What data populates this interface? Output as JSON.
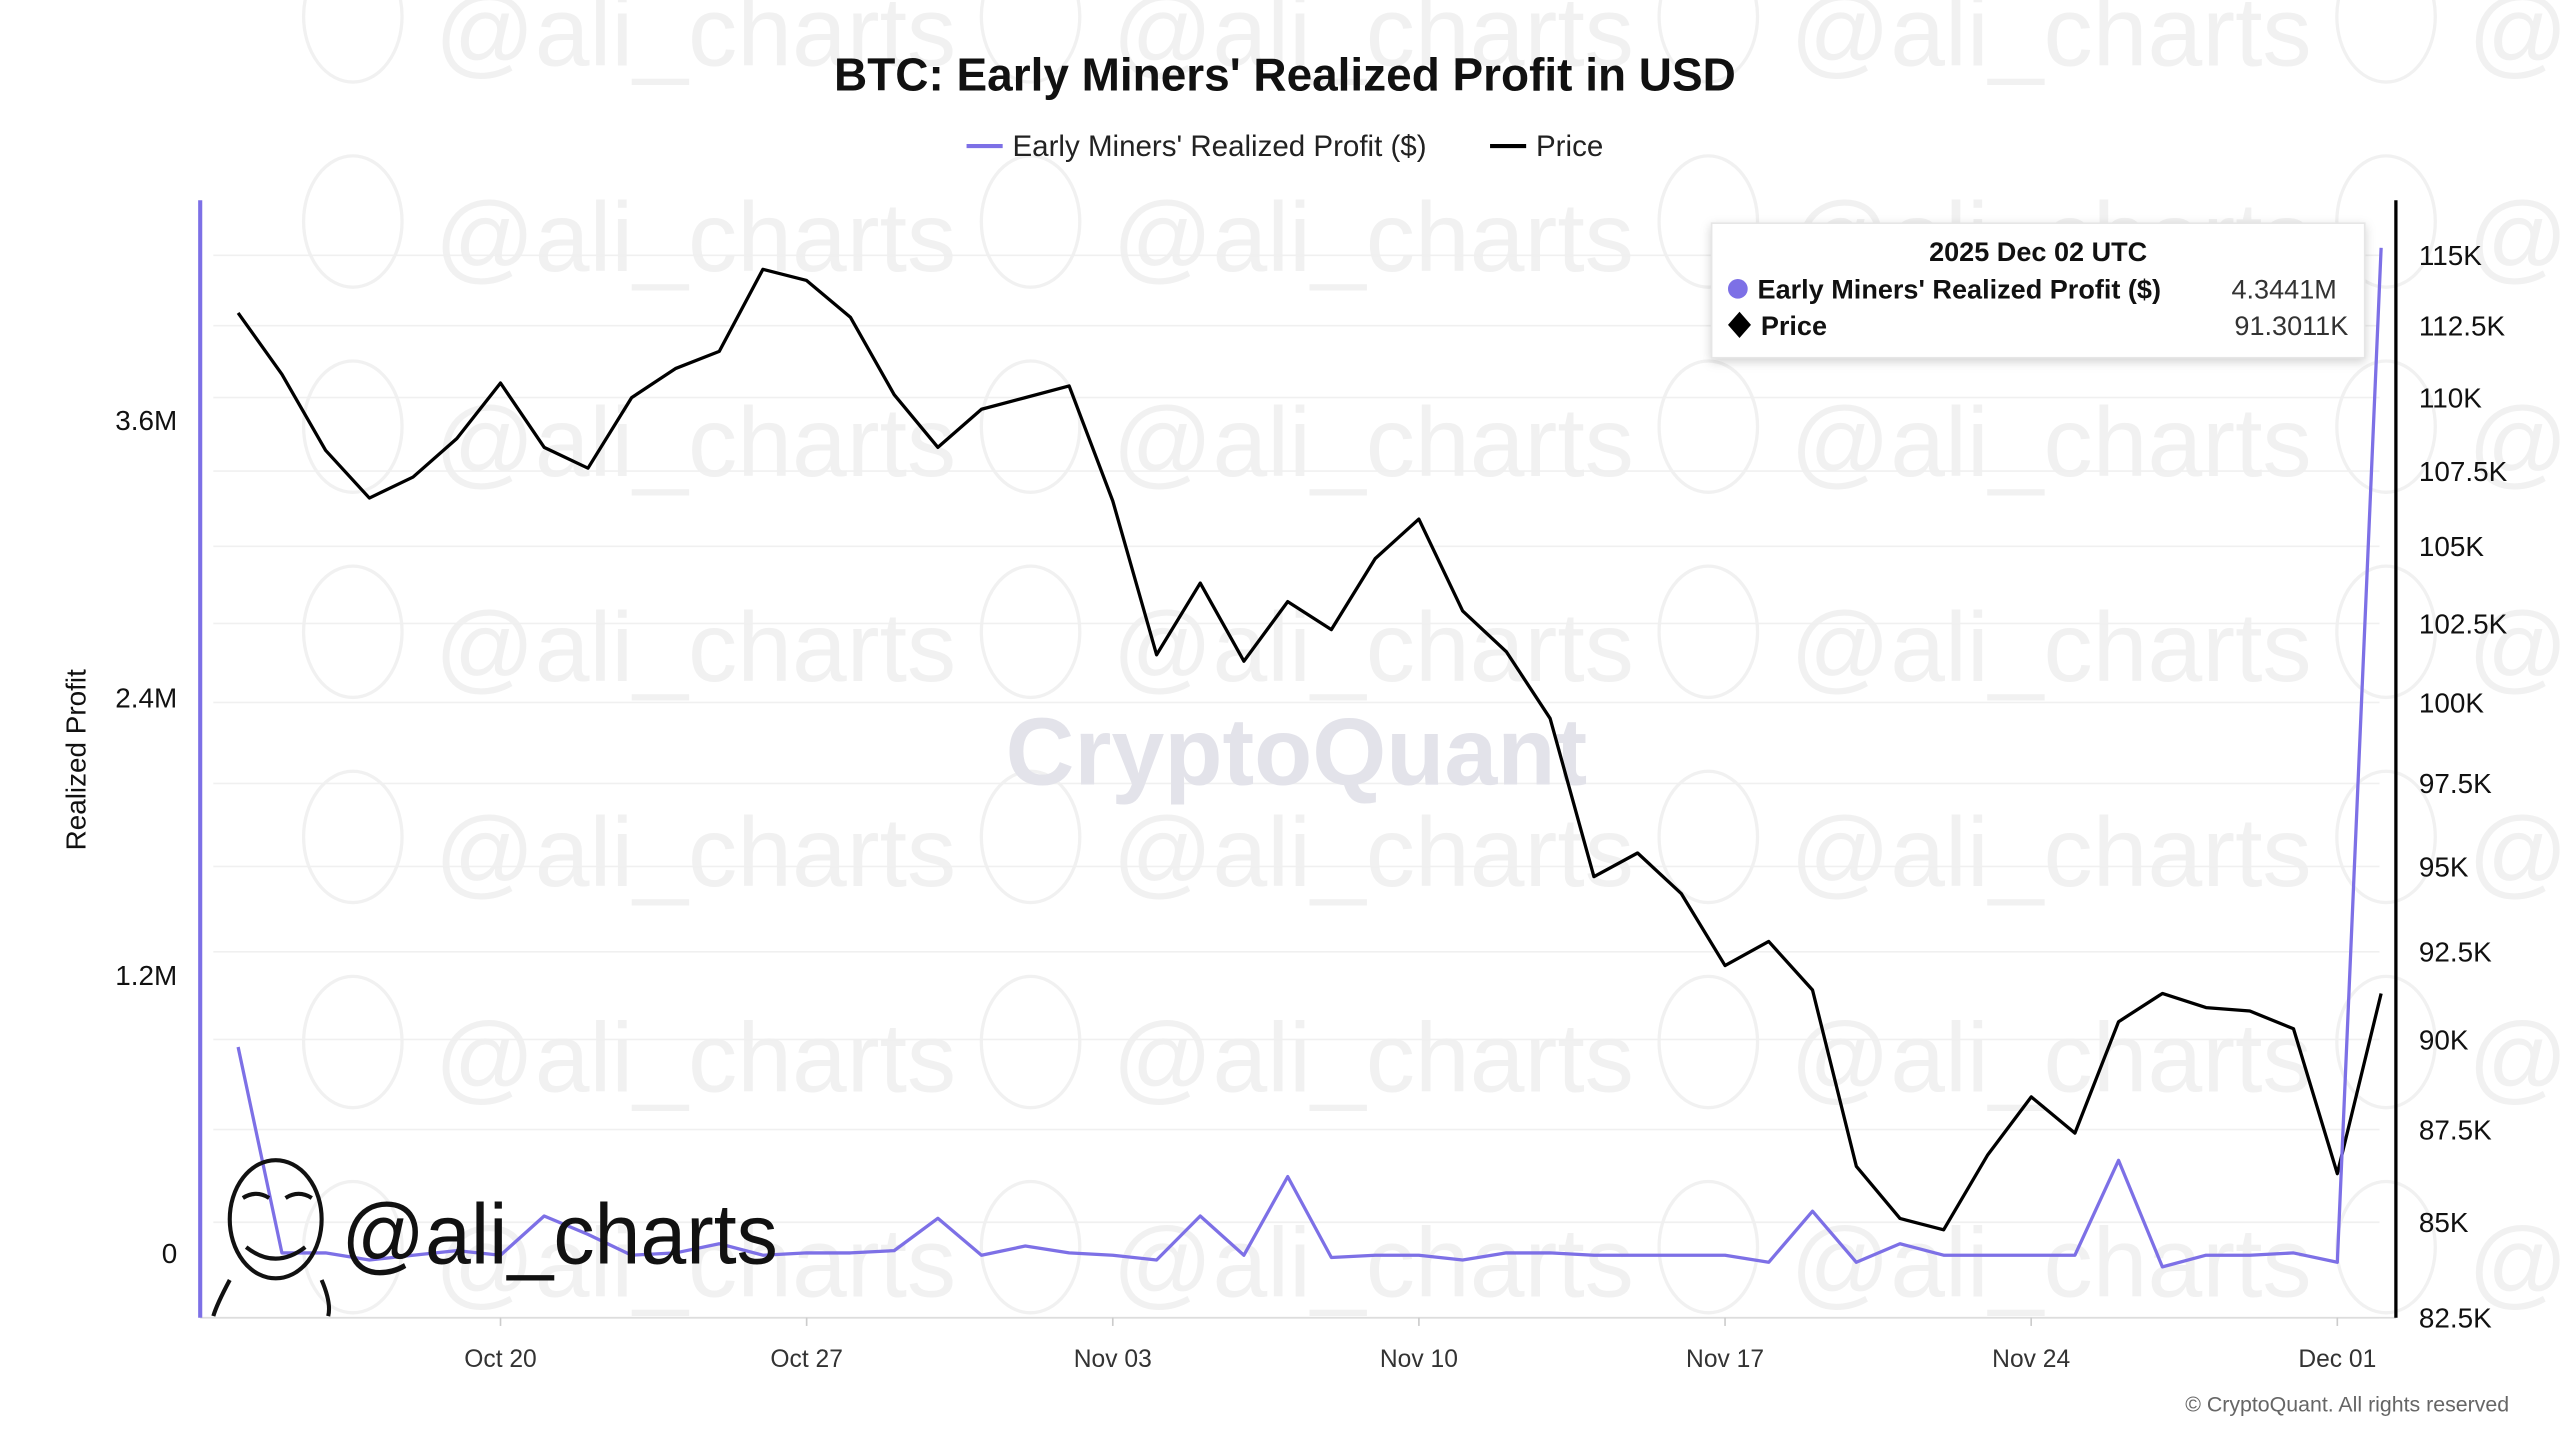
{
  "chart_data": {
    "type": "line",
    "title": "BTC: Early Miners' Realized Profit in USD",
    "legend_placement": "top-center",
    "grid": true,
    "x": [
      "2025-10-14",
      "2025-10-15",
      "2025-10-16",
      "2025-10-17",
      "2025-10-18",
      "2025-10-19",
      "2025-10-20",
      "2025-10-21",
      "2025-10-22",
      "2025-10-23",
      "2025-10-24",
      "2025-10-25",
      "2025-10-26",
      "2025-10-27",
      "2025-10-28",
      "2025-10-29",
      "2025-10-30",
      "2025-10-31",
      "2025-11-01",
      "2025-11-02",
      "2025-11-03",
      "2025-11-04",
      "2025-11-05",
      "2025-11-06",
      "2025-11-07",
      "2025-11-08",
      "2025-11-09",
      "2025-11-10",
      "2025-11-11",
      "2025-11-12",
      "2025-11-13",
      "2025-11-14",
      "2025-11-15",
      "2025-11-16",
      "2025-11-17",
      "2025-11-18",
      "2025-11-19",
      "2025-11-20",
      "2025-11-21",
      "2025-11-22",
      "2025-11-23",
      "2025-11-24",
      "2025-11-25",
      "2025-11-26",
      "2025-11-27",
      "2025-11-28",
      "2025-11-29",
      "2025-11-30",
      "2025-12-01",
      "2025-12-02"
    ],
    "x_ticks": [
      "Oct 20",
      "Oct 27",
      "Nov 03",
      "Nov 10",
      "Nov 17",
      "Nov 24",
      "Dec 01"
    ],
    "x_tick_dates": [
      "2025-10-20",
      "2025-10-27",
      "2025-11-03",
      "2025-11-10",
      "2025-11-17",
      "2025-11-24",
      "2025-12-01"
    ],
    "xlim": [
      "2025-10-13",
      "2025-12-02"
    ],
    "y_left": {
      "label": "Realized Profit",
      "ticks": [
        "0",
        "1.2M",
        "2.4M",
        "3.6M"
      ],
      "tick_values": [
        0,
        1200000,
        2400000,
        3600000
      ],
      "ylim": [
        -280000,
        4550000
      ],
      "scale": "linear"
    },
    "y_right": {
      "label": "",
      "ticks": [
        "82.5K",
        "85K",
        "87.5K",
        "90K",
        "92.5K",
        "95K",
        "97.5K",
        "100K",
        "102.5K",
        "105K",
        "107.5K",
        "110K",
        "112.5K",
        "115K"
      ],
      "tick_values": [
        82500,
        85000,
        87500,
        90000,
        92500,
        95000,
        97500,
        100000,
        102500,
        105000,
        107500,
        110000,
        112500,
        115000
      ],
      "ylim": [
        82500,
        117000
      ],
      "scale": "log"
    },
    "series": [
      {
        "name": "Early Miners' Realized Profit ($)",
        "axis": "left",
        "color": "#7d70e6",
        "values": [
          890000,
          0,
          0,
          -30000,
          -10000,
          10000,
          -10000,
          160000,
          80000,
          -10000,
          0,
          40000,
          -10000,
          0,
          0,
          10000,
          150000,
          -10000,
          30000,
          0,
          -10000,
          -30000,
          160000,
          -10000,
          330000,
          -20000,
          -10000,
          -10000,
          -30000,
          0,
          0,
          -10000,
          -10000,
          -10000,
          -10000,
          -40000,
          180000,
          -40000,
          40000,
          -10000,
          -10000,
          -10000,
          -10000,
          400000,
          -60000,
          -10000,
          -10000,
          0,
          -40000,
          4344100
        ]
      },
      {
        "name": "Price",
        "axis": "right",
        "color": "#000000",
        "values": [
          112950,
          110800,
          108200,
          106600,
          107300,
          108600,
          110500,
          108300,
          107600,
          110000,
          111000,
          111600,
          114500,
          114100,
          112800,
          110100,
          108300,
          109600,
          110000,
          110400,
          106500,
          101500,
          103800,
          101300,
          103200,
          102300,
          104600,
          105900,
          102900,
          101600,
          99500,
          94700,
          95400,
          94200,
          92100,
          92800,
          91400,
          86500,
          85100,
          84800,
          86800,
          88400,
          87400,
          90500,
          91300,
          90900,
          90800,
          90300,
          86300,
          91301
        ]
      }
    ],
    "tooltip": {
      "date": "2025 Dec 02 UTC",
      "rows": [
        {
          "label": "Early Miners' Realized Profit ($)",
          "value": "4.3441M",
          "marker": "circle",
          "color": "#7d70e6"
        },
        {
          "label": "Price",
          "value": "91.3011K",
          "marker": "diamond",
          "color": "#000000"
        }
      ]
    }
  },
  "watermarks": {
    "brand": "CryptoQuant",
    "author": "@ali_charts"
  },
  "copyright": "© CryptoQuant. All rights reserved"
}
